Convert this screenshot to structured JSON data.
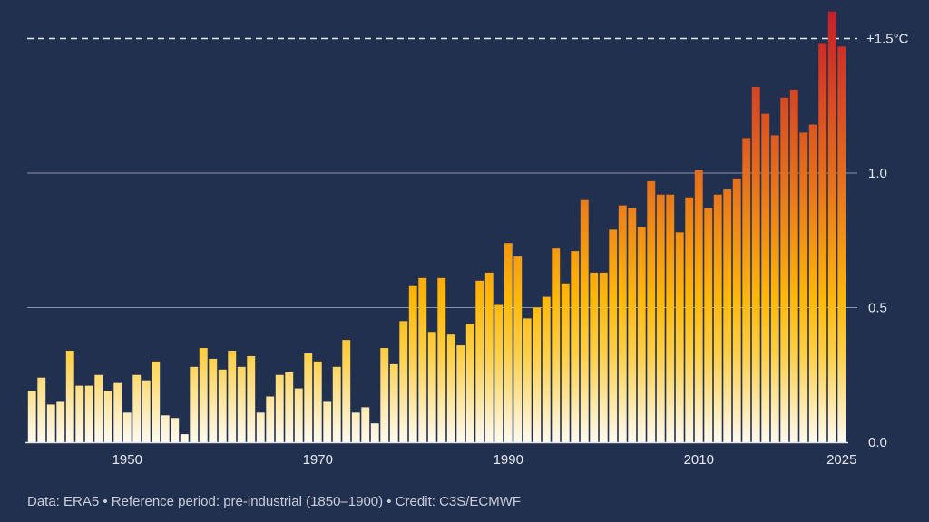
{
  "chart_data": {
    "type": "bar",
    "title": "",
    "xlabel": "",
    "ylabel": "",
    "ylim": [
      0,
      1.6
    ],
    "grid": true,
    "x": [
      1940,
      1941,
      1942,
      1943,
      1944,
      1945,
      1946,
      1947,
      1948,
      1949,
      1950,
      1951,
      1952,
      1953,
      1954,
      1955,
      1956,
      1957,
      1958,
      1959,
      1960,
      1961,
      1962,
      1963,
      1964,
      1965,
      1966,
      1967,
      1968,
      1969,
      1970,
      1971,
      1972,
      1973,
      1974,
      1975,
      1976,
      1977,
      1978,
      1979,
      1980,
      1981,
      1982,
      1983,
      1984,
      1985,
      1986,
      1987,
      1988,
      1989,
      1990,
      1991,
      1992,
      1993,
      1994,
      1995,
      1996,
      1997,
      1998,
      1999,
      2000,
      2001,
      2002,
      2003,
      2004,
      2005,
      2006,
      2007,
      2008,
      2009,
      2010,
      2011,
      2012,
      2013,
      2014,
      2015,
      2016,
      2017,
      2018,
      2019,
      2020,
      2021,
      2022,
      2023,
      2024,
      2025
    ],
    "values": [
      0.19,
      0.24,
      0.14,
      0.15,
      0.34,
      0.21,
      0.21,
      0.25,
      0.19,
      0.22,
      0.11,
      0.25,
      0.23,
      0.3,
      0.1,
      0.09,
      0.03,
      0.28,
      0.35,
      0.31,
      0.27,
      0.34,
      0.28,
      0.32,
      0.11,
      0.17,
      0.25,
      0.26,
      0.2,
      0.33,
      0.3,
      0.15,
      0.28,
      0.38,
      0.11,
      0.13,
      0.07,
      0.35,
      0.29,
      0.45,
      0.58,
      0.61,
      0.41,
      0.61,
      0.4,
      0.36,
      0.44,
      0.6,
      0.63,
      0.51,
      0.74,
      0.69,
      0.46,
      0.5,
      0.54,
      0.72,
      0.59,
      0.71,
      0.9,
      0.63,
      0.63,
      0.79,
      0.88,
      0.87,
      0.8,
      0.97,
      0.92,
      0.92,
      0.78,
      0.91,
      1.01,
      0.87,
      0.92,
      0.94,
      0.98,
      1.13,
      1.32,
      1.22,
      1.14,
      1.28,
      1.31,
      1.15,
      1.18,
      1.48,
      1.6,
      1.47
    ],
    "x_ticks": [
      "1950",
      "1970",
      "1990",
      "2010",
      "2025"
    ],
    "y_ticks": [
      "0.0",
      "0.5",
      "1.0"
    ],
    "reference_line": {
      "value": 1.5,
      "label": "+1.5°C",
      "style": "dashed"
    },
    "colors": {
      "background": "#22304f",
      "low": "#fffaf0",
      "mid": "#ffbf0f",
      "high": "#e46b1e",
      "top": "#c8202c"
    }
  },
  "footer": {
    "credit": "Data: ERA5 • Reference period: pre-industrial (1850–1900) • Credit: C3S/ECMWF"
  }
}
